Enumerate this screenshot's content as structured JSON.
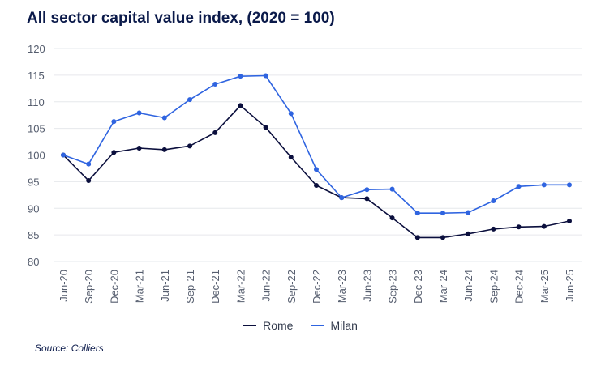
{
  "title": "All sector capital value index, (2020 = 100)",
  "source": "Source: Colliers",
  "chart_data": {
    "type": "line",
    "categories": [
      "Jun-20",
      "Sep-20",
      "Dec-20",
      "Mar-21",
      "Jun-21",
      "Sep-21",
      "Dec-21",
      "Mar-22",
      "Jun-22",
      "Sep-22",
      "Dec-22",
      "Mar-23",
      "Jun-23",
      "Sep-23",
      "Dec-23",
      "Mar-24",
      "Jun-24",
      "Sep-24",
      "Dec-24",
      "Mar-25",
      "Jun-25"
    ],
    "series": [
      {
        "name": "Rome",
        "color": "#0b0f3d",
        "values": [
          100,
          95.2,
          100.5,
          101.3,
          101.0,
          101.7,
          104.2,
          109.3,
          105.2,
          99.6,
          94.3,
          92.0,
          91.8,
          88.2,
          84.5,
          84.5,
          85.2,
          86.1,
          86.5,
          86.6,
          87.6
        ]
      },
      {
        "name": "Milan",
        "color": "#2f64e0",
        "values": [
          100,
          98.3,
          106.3,
          107.9,
          107.0,
          110.4,
          113.3,
          114.8,
          114.9,
          107.8,
          97.3,
          92.0,
          93.5,
          93.6,
          89.1,
          89.1,
          89.2,
          91.4,
          94.1,
          94.4,
          94.4
        ]
      }
    ],
    "ylim": [
      80,
      120
    ],
    "yticks": [
      80,
      85,
      90,
      95,
      100,
      105,
      110,
      115,
      120
    ],
    "grid": true,
    "legend_position": "bottom-center",
    "xlabel": "",
    "ylabel": ""
  }
}
